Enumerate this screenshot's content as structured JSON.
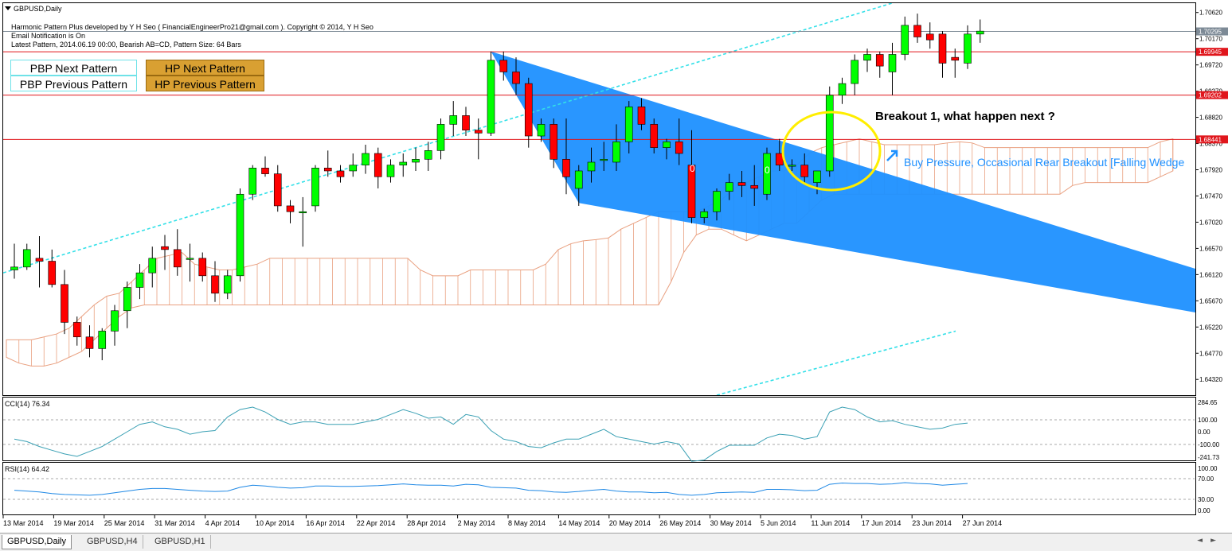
{
  "window": {
    "title": "GBPUSD,Daily"
  },
  "header": {
    "line1": "Harmonic Pattern Plus developed by Y H Seo ( FinancialEngineerPro21@gmail.com ). Copyright © 2014, Y H Seo",
    "line2": "Email Notification is On",
    "line3": "Latest Pattern, 2014.06.19 00:00, Bearish AB=CD, Pattern Size: 64 Bars"
  },
  "buttons": {
    "pbp_next": "PBP Next Pattern",
    "pbp_prev": "PBP Previous Pattern",
    "hp_next": "HP Next Pattern",
    "hp_prev": "HP Previous Pattern"
  },
  "annotations": {
    "breakout": "Breakout 1, what happen next ?",
    "pressure": "Buy Pressure, Occasional Rear Breakout [Falling Wedge"
  },
  "price_axis": {
    "ticks": [
      "1.70620",
      "1.70170",
      "1.69720",
      "1.69270",
      "1.68820",
      "1.68370",
      "1.67920",
      "1.67470",
      "1.67020",
      "1.66570",
      "1.66120",
      "1.65670",
      "1.65220",
      "1.64770",
      "1.64320"
    ],
    "markers": [
      {
        "label": "1.70295",
        "color": "#7d8a96"
      },
      {
        "label": "1.69945",
        "color": "#e0161c"
      },
      {
        "label": "1.69202",
        "color": "#e0161c"
      },
      {
        "label": "1.68441",
        "color": "#e0161c"
      }
    ]
  },
  "time_axis": {
    "labels": [
      "13 Mar 2014",
      "19 Mar 2014",
      "25 Mar 2014",
      "31 Mar 2014",
      "4 Apr 2014",
      "10 Apr 2014",
      "16 Apr 2014",
      "22 Apr 2014",
      "28 Apr 2014",
      "2 May 2014",
      "8 May 2014",
      "14 May 2014",
      "20 May 2014",
      "26 May 2014",
      "30 May 2014",
      "5 Jun 2014",
      "11 Jun 2014",
      "17 Jun 2014",
      "23 Jun 2014",
      "27 Jun 2014"
    ]
  },
  "cci": {
    "label": "CCI(14) 76.34",
    "ticks": [
      "284.65",
      "100.00",
      "0.00",
      "-100.00",
      "-241.73"
    ]
  },
  "rsi": {
    "label": "RSI(14) 64.42",
    "ticks": [
      "100.00",
      "70.00",
      "30.00",
      "0.00"
    ]
  },
  "tabs": [
    {
      "label": "GBPUSD,Daily",
      "active": true
    },
    {
      "label": "GBPUSD,H4",
      "active": false
    },
    {
      "label": "GBPUSD,H1",
      "active": false
    }
  ],
  "colors": {
    "bull": "#00ff00",
    "bear": "#ff0000",
    "wedge": "#1e90ff",
    "cloud": "#e9a080",
    "channel": "#33e0e8",
    "ellipse": "#ffee00",
    "indicator": "#3aa0b4"
  },
  "chart_data": {
    "type": "candlestick",
    "symbol": "GBPUSD",
    "timeframe": "Daily",
    "ylim": [
      1.6405,
      1.7078
    ],
    "candles": [
      [
        1.662,
        1.6665,
        1.6605,
        1.6625
      ],
      [
        1.6625,
        1.6665,
        1.662,
        1.6655
      ],
      [
        1.664,
        1.6678,
        1.659,
        1.6635
      ],
      [
        1.6635,
        1.6655,
        1.659,
        1.6595
      ],
      [
        1.6595,
        1.662,
        1.651,
        1.653
      ],
      [
        1.653,
        1.654,
        1.649,
        1.6505
      ],
      [
        1.6505,
        1.6525,
        1.647,
        1.6485
      ],
      [
        1.6485,
        1.652,
        1.6465,
        1.6515
      ],
      [
        1.6515,
        1.656,
        1.649,
        1.655
      ],
      [
        1.655,
        1.66,
        1.652,
        1.659
      ],
      [
        1.659,
        1.663,
        1.657,
        1.6615
      ],
      [
        1.6615,
        1.666,
        1.659,
        1.664
      ],
      [
        1.666,
        1.668,
        1.662,
        1.6655
      ],
      [
        1.6655,
        1.669,
        1.661,
        1.6625
      ],
      [
        1.664,
        1.6665,
        1.66,
        1.664
      ],
      [
        1.664,
        1.665,
        1.66,
        1.661
      ],
      [
        1.661,
        1.6635,
        1.6565,
        1.658
      ],
      [
        1.658,
        1.662,
        1.657,
        1.661
      ],
      [
        1.661,
        1.676,
        1.66,
        1.675
      ],
      [
        1.675,
        1.68,
        1.674,
        1.6795
      ],
      [
        1.6795,
        1.6815,
        1.678,
        1.6785
      ],
      [
        1.6785,
        1.68,
        1.672,
        1.673
      ],
      [
        1.673,
        1.674,
        1.67,
        1.672
      ],
      [
        1.672,
        1.6745,
        1.666,
        1.672
      ],
      [
        1.673,
        1.68,
        1.672,
        1.6795
      ],
      [
        1.6795,
        1.6825,
        1.678,
        1.679
      ],
      [
        1.679,
        1.68,
        1.677,
        1.678
      ],
      [
        1.679,
        1.682,
        1.678,
        1.68
      ],
      [
        1.68,
        1.6835,
        1.6785,
        1.682
      ],
      [
        1.682,
        1.683,
        1.676,
        1.678
      ],
      [
        1.678,
        1.681,
        1.677,
        1.68
      ],
      [
        1.68,
        1.682,
        1.678,
        1.6805
      ],
      [
        1.6805,
        1.683,
        1.679,
        1.681
      ],
      [
        1.681,
        1.684,
        1.679,
        1.6825
      ],
      [
        1.6825,
        1.688,
        1.681,
        1.687
      ],
      [
        1.687,
        1.691,
        1.685,
        1.6885
      ],
      [
        1.6885,
        1.69,
        1.685,
        1.686
      ],
      [
        1.686,
        1.688,
        1.681,
        1.6855
      ],
      [
        1.6855,
        1.6995,
        1.685,
        1.698
      ],
      [
        1.698,
        1.6995,
        1.6945,
        1.696
      ],
      [
        1.696,
        1.6985,
        1.692,
        1.694
      ],
      [
        1.694,
        1.695,
        1.683,
        1.685
      ],
      [
        1.685,
        1.688,
        1.684,
        1.687
      ],
      [
        1.687,
        1.688,
        1.6795,
        1.681
      ],
      [
        1.681,
        1.688,
        1.675,
        1.678
      ],
      [
        1.676,
        1.68,
        1.673,
        1.679
      ],
      [
        1.679,
        1.683,
        1.677,
        1.6805
      ],
      [
        1.681,
        1.684,
        1.679,
        1.681
      ],
      [
        1.6805,
        1.687,
        1.679,
        1.684
      ],
      [
        1.684,
        1.691,
        1.682,
        1.69
      ],
      [
        1.69,
        1.6915,
        1.686,
        1.687
      ],
      [
        1.687,
        1.688,
        1.682,
        1.683
      ],
      [
        1.683,
        1.6845,
        1.681,
        1.684
      ],
      [
        1.684,
        1.688,
        1.68,
        1.682
      ],
      [
        1.68,
        1.686,
        1.67,
        1.671
      ],
      [
        1.671,
        1.6725,
        1.67,
        1.672
      ],
      [
        1.672,
        1.676,
        1.6705,
        1.6755
      ],
      [
        1.6755,
        1.6785,
        1.674,
        1.677
      ],
      [
        1.677,
        1.679,
        1.6745,
        1.6765
      ],
      [
        1.6765,
        1.68,
        1.673,
        1.676
      ],
      [
        1.675,
        1.683,
        1.674,
        1.682
      ],
      [
        1.682,
        1.6845,
        1.679,
        1.68
      ],
      [
        1.68,
        1.681,
        1.679,
        1.68
      ],
      [
        1.68,
        1.682,
        1.677,
        1.678
      ],
      [
        1.677,
        1.679,
        1.675,
        1.679
      ],
      [
        1.679,
        1.6935,
        1.678,
        1.692
      ],
      [
        1.692,
        1.695,
        1.6905,
        1.694
      ],
      [
        1.694,
        1.699,
        1.692,
        1.698
      ],
      [
        1.698,
        1.7,
        1.696,
        1.699
      ],
      [
        1.699,
        1.6995,
        1.695,
        1.697
      ],
      [
        1.696,
        1.701,
        1.692,
        1.699
      ],
      [
        1.699,
        1.7055,
        1.698,
        1.704
      ],
      [
        1.704,
        1.706,
        1.701,
        1.702
      ],
      [
        1.7025,
        1.7045,
        1.7,
        1.7015
      ],
      [
        1.7025,
        1.703,
        1.695,
        1.6975
      ],
      [
        1.6985,
        1.7,
        1.695,
        1.698
      ],
      [
        1.6975,
        1.704,
        1.6965,
        1.7025
      ],
      [
        1.7025,
        1.705,
        1.701,
        1.703
      ]
    ]
  }
}
